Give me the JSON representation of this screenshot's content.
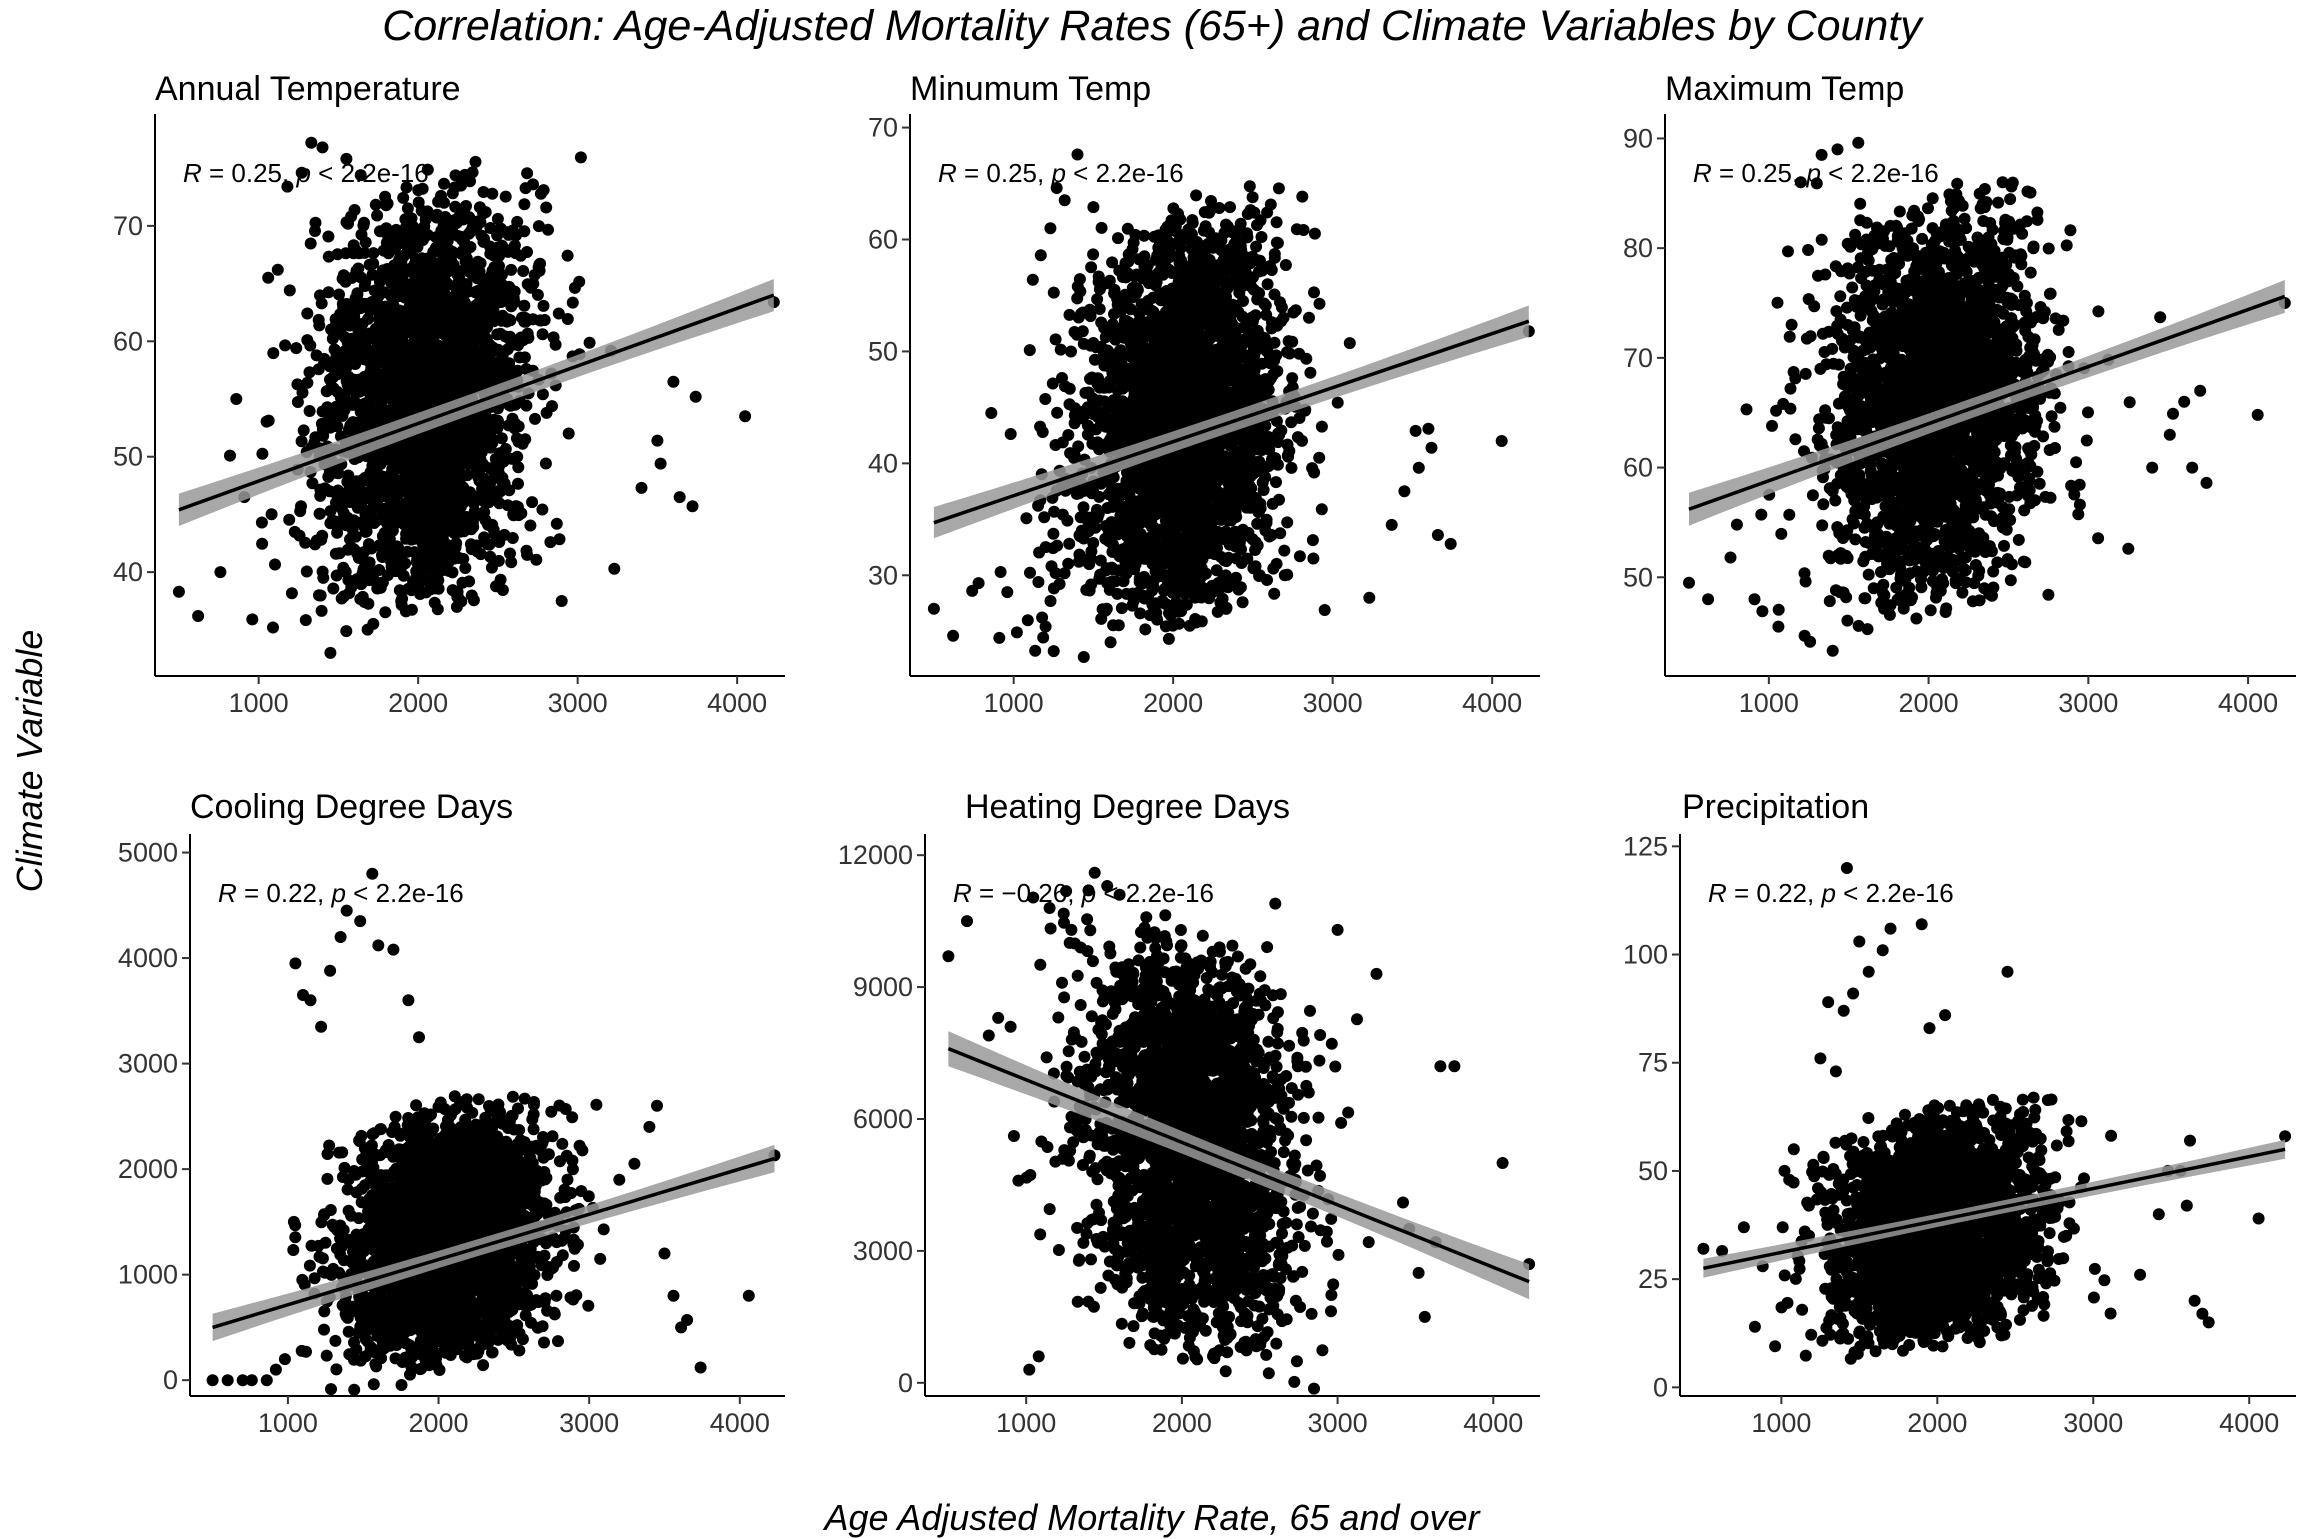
{
  "figure": {
    "title": "Correlation: Age-Adjusted Mortality Rates (65+) and Climate Variables by County",
    "xlabel": "Age Adjusted Mortality Rate, 65 and over",
    "ylabel": "Climate Variable"
  },
  "colors": {
    "points": "#000000",
    "line": "#000000",
    "band": "#999999"
  },
  "chart_data": [
    {
      "type": "scatter",
      "title": "Annual Temperature",
      "xlim": [
        350,
        4300
      ],
      "ylim": [
        31,
        79
      ],
      "xticks": [
        1000,
        2000,
        3000,
        4000
      ],
      "xtick_labels": [
        "1000",
        "2000",
        "3000",
        "4000"
      ],
      "yticks": [
        40,
        50,
        60,
        70
      ],
      "ytick_labels": [
        "40",
        "50",
        "60",
        "70"
      ],
      "annotation": {
        "r_label": "R",
        "r_text": " = 0.25, ",
        "p_label": "p",
        "p_text": " < 2.2e-16"
      },
      "trend": {
        "x": [
          500,
          4230
        ],
        "y": [
          45.4,
          64.0
        ],
        "band": [
          0.9,
          1.4
        ]
      },
      "cloud": {
        "x_center": 2050,
        "x_sd": 320,
        "y_low": 35,
        "y_high": 75
      },
      "points": [
        [
          500,
          38.3
        ],
        [
          620,
          36.2
        ],
        [
          760,
          40.0
        ],
        [
          820,
          50.1
        ],
        [
          860,
          55.0
        ],
        [
          910,
          46.5
        ],
        [
          960,
          35.9
        ],
        [
          1020,
          44.3
        ],
        [
          1060,
          65.5
        ],
        [
          1090,
          35.2
        ],
        [
          1120,
          66.2
        ],
        [
          1180,
          73.4
        ],
        [
          1270,
          74.6
        ],
        [
          1330,
          77.2
        ],
        [
          1400,
          76.8
        ],
        [
          1450,
          33.0
        ],
        [
          1550,
          75.8
        ],
        [
          1640,
          74.4
        ],
        [
          2560,
          63.5
        ],
        [
          2900,
          37.5
        ],
        [
          3230,
          40.3
        ],
        [
          3400,
          47.3
        ],
        [
          3500,
          51.4
        ],
        [
          3520,
          49.4
        ],
        [
          3600,
          56.5
        ],
        [
          3640,
          46.5
        ],
        [
          3720,
          45.7
        ],
        [
          3740,
          55.2
        ],
        [
          4050,
          53.5
        ],
        [
          4230,
          63.4
        ]
      ]
    },
    {
      "type": "scatter",
      "title": "Minumum Temp",
      "xlim": [
        350,
        4300
      ],
      "ylim": [
        21,
        70.5
      ],
      "xticks": [
        1000,
        2000,
        3000,
        4000
      ],
      "xtick_labels": [
        "1000",
        "2000",
        "3000",
        "4000"
      ],
      "yticks": [
        30,
        40,
        50,
        60,
        70
      ],
      "ytick_labels": [
        "30",
        "40",
        "50",
        "60",
        "70"
      ],
      "annotation": {
        "r_label": "R",
        "r_text": " = 0.25, ",
        "p_label": "p",
        "p_text": " < 2.2e-16"
      },
      "trend": {
        "x": [
          500,
          4230
        ],
        "y": [
          34.7,
          52.7
        ],
        "band": [
          0.9,
          1.4
        ]
      },
      "cloud": {
        "x_center": 2050,
        "x_sd": 320,
        "y_low": 24,
        "y_high": 64
      },
      "points": [
        [
          500,
          27.0
        ],
        [
          620,
          24.6
        ],
        [
          740,
          28.6
        ],
        [
          780,
          29.3
        ],
        [
          860,
          44.5
        ],
        [
          910,
          24.4
        ],
        [
          960,
          28.5
        ],
        [
          1020,
          24.9
        ],
        [
          1080,
          35.1
        ],
        [
          1120,
          56.4
        ],
        [
          1170,
          58.6
        ],
        [
          1230,
          61.0
        ],
        [
          1270,
          64.6
        ],
        [
          1320,
          63.5
        ],
        [
          1400,
          67.6
        ],
        [
          1440,
          22.7
        ],
        [
          1500,
          62.9
        ],
        [
          2700,
          30.0
        ],
        [
          2950,
          26.9
        ],
        [
          3230,
          28.0
        ],
        [
          3370,
          34.5
        ],
        [
          3450,
          37.5
        ],
        [
          3520,
          42.9
        ],
        [
          3540,
          39.6
        ],
        [
          3600,
          43.1
        ],
        [
          3620,
          41.4
        ],
        [
          3660,
          33.6
        ],
        [
          3740,
          32.8
        ],
        [
          4060,
          42.0
        ],
        [
          4230,
          51.8
        ]
      ]
    },
    {
      "type": "scatter",
      "title": "Maximum Temp",
      "xlim": [
        350,
        4300
      ],
      "ylim": [
        41,
        91.5
      ],
      "xticks": [
        1000,
        2000,
        3000,
        4000
      ],
      "xtick_labels": [
        "1000",
        "2000",
        "3000",
        "4000"
      ],
      "yticks": [
        50,
        60,
        70,
        80,
        90
      ],
      "ytick_labels": [
        "50",
        "60",
        "70",
        "80",
        "90"
      ],
      "annotation": {
        "r_label": "R",
        "r_text": " = 0.25, ",
        "p_label": "p",
        "p_text": " < 2.2e-16"
      },
      "trend": {
        "x": [
          500,
          4230
        ],
        "y": [
          56.2,
          75.6
        ],
        "band": [
          0.9,
          1.5
        ]
      },
      "cloud": {
        "x_center": 2050,
        "x_sd": 320,
        "y_low": 46,
        "y_high": 86
      },
      "points": [
        [
          500,
          49.5
        ],
        [
          620,
          48.0
        ],
        [
          760,
          51.8
        ],
        [
          800,
          54.8
        ],
        [
          860,
          65.3
        ],
        [
          910,
          48.0
        ],
        [
          960,
          46.9
        ],
        [
          1020,
          63.8
        ],
        [
          1060,
          45.5
        ],
        [
          1090,
          65.8
        ],
        [
          1120,
          79.7
        ],
        [
          1200,
          86.0
        ],
        [
          1300,
          85.9
        ],
        [
          1330,
          88.5
        ],
        [
          1400,
          43.3
        ],
        [
          1430,
          89.0
        ],
        [
          1560,
          89.6
        ],
        [
          2750,
          48.4
        ],
        [
          3250,
          52.6
        ],
        [
          3400,
          60.0
        ],
        [
          3450,
          73.7
        ],
        [
          3510,
          63.0
        ],
        [
          3530,
          64.9
        ],
        [
          3600,
          66.0
        ],
        [
          3650,
          60.0
        ],
        [
          3740,
          58.6
        ],
        [
          3700,
          67.0
        ],
        [
          4060,
          64.8
        ],
        [
          4230,
          75.0
        ]
      ]
    },
    {
      "type": "scatter",
      "title": "Cooling Degree Days",
      "xlim": [
        350,
        4300
      ],
      "ylim": [
        -150,
        5100
      ],
      "xticks": [
        1000,
        2000,
        3000,
        4000
      ],
      "xtick_labels": [
        "1000",
        "2000",
        "3000",
        "4000"
      ],
      "yticks": [
        0,
        1000,
        2000,
        3000,
        4000,
        5000
      ],
      "ytick_labels": [
        "0",
        "1000",
        "2000",
        "3000",
        "4000",
        "5000"
      ],
      "annotation": {
        "r_label": "R",
        "r_text": " = 0.22, ",
        "p_label": "p",
        "p_text": " < 2.2e-16"
      },
      "trend": {
        "x": [
          500,
          4230
        ],
        "y": [
          500,
          2100
        ],
        "band": [
          80,
          130
        ]
      },
      "cloud": {
        "x_center": 2080,
        "x_sd": 330,
        "y_low": 30,
        "y_high": 2700
      },
      "points": [
        [
          500,
          0
        ],
        [
          600,
          0
        ],
        [
          700,
          0
        ],
        [
          760,
          0
        ],
        [
          860,
          0
        ],
        [
          920,
          100
        ],
        [
          980,
          200
        ],
        [
          1040,
          1500
        ],
        [
          1050,
          3950
        ],
        [
          1100,
          3650
        ],
        [
          1150,
          3600
        ],
        [
          1220,
          3350
        ],
        [
          1280,
          3880
        ],
        [
          1350,
          4200
        ],
        [
          1390,
          4450
        ],
        [
          1480,
          4350
        ],
        [
          1560,
          4800
        ],
        [
          1600,
          4120
        ],
        [
          1700,
          4080
        ],
        [
          1800,
          3600
        ],
        [
          1870,
          3250
        ],
        [
          3200,
          1900
        ],
        [
          3300,
          2050
        ],
        [
          3400,
          2400
        ],
        [
          3450,
          2600
        ],
        [
          3500,
          1200
        ],
        [
          3560,
          800
        ],
        [
          3610,
          500
        ],
        [
          3650,
          570
        ],
        [
          3740,
          120
        ],
        [
          4060,
          800
        ],
        [
          4230,
          2130
        ]
      ]
    },
    {
      "type": "scatter",
      "title": "Heating Degree Days",
      "xlim": [
        350,
        4300
      ],
      "ylim": [
        -300,
        12300
      ],
      "xticks": [
        1000,
        2000,
        3000,
        4000
      ],
      "xtick_labels": [
        "1000",
        "2000",
        "3000",
        "4000"
      ],
      "yticks": [
        0,
        3000,
        6000,
        9000,
        12000
      ],
      "ytick_labels": [
        "0",
        "3000",
        "6000",
        "9000",
        "12000"
      ],
      "annotation": {
        "r_label": "R",
        "r_text": " = −0.26, ",
        "p_label": "p",
        "p_text": " < 2.2e-16"
      },
      "trend": {
        "x": [
          500,
          4230
        ],
        "y": [
          7600,
          2300
        ],
        "band": [
          250,
          400
        ]
      },
      "cloud": {
        "x_center": 2050,
        "x_sd": 330,
        "y_low": 300,
        "y_high": 10500
      },
      "points": [
        [
          500,
          9700
        ],
        [
          620,
          10500
        ],
        [
          760,
          7900
        ],
        [
          820,
          8300
        ],
        [
          900,
          8100
        ],
        [
          950,
          4600
        ],
        [
          1020,
          300
        ],
        [
          1080,
          600
        ],
        [
          1150,
          10800
        ],
        [
          1230,
          9100
        ],
        [
          1290,
          10300
        ],
        [
          1350,
          9900
        ],
        [
          1400,
          11200
        ],
        [
          1440,
          11600
        ],
        [
          1520,
          11300
        ],
        [
          1600,
          11100
        ],
        [
          2600,
          10900
        ],
        [
          3000,
          10300
        ],
        [
          3200,
          3200
        ],
        [
          3250,
          9300
        ],
        [
          3420,
          4100
        ],
        [
          3460,
          3500
        ],
        [
          3520,
          2500
        ],
        [
          3560,
          1500
        ],
        [
          3630,
          3200
        ],
        [
          3660,
          7200
        ],
        [
          3750,
          7200
        ],
        [
          4060,
          5000
        ],
        [
          4230,
          2700
        ]
      ]
    },
    {
      "type": "scatter",
      "title": "Precipitation",
      "xlim": [
        350,
        4300
      ],
      "ylim": [
        -2,
        126
      ],
      "xticks": [
        1000,
        2000,
        3000,
        4000
      ],
      "xtick_labels": [
        "1000",
        "2000",
        "3000",
        "4000"
      ],
      "yticks": [
        0,
        25,
        50,
        75,
        100,
        125
      ],
      "ytick_labels": [
        "0",
        "25",
        "50",
        "75",
        "100",
        "125"
      ],
      "annotation": {
        "r_label": "R",
        "r_text": " = 0.22, ",
        "p_label": "p",
        "p_text": " < 2.2e-16"
      },
      "trend": {
        "x": [
          500,
          4230
        ],
        "y": [
          27.5,
          55.0
        ],
        "band": [
          1.5,
          2.2
        ]
      },
      "cloud": {
        "x_center": 2000,
        "x_sd": 330,
        "y_low": 8,
        "y_high": 66
      },
      "points": [
        [
          500,
          32.0
        ],
        [
          620,
          31.5
        ],
        [
          760,
          37.0
        ],
        [
          830,
          14.0
        ],
        [
          880,
          28.0
        ],
        [
          960,
          9.5
        ],
        [
          1020,
          50.0
        ],
        [
          1080,
          55.0
        ],
        [
          1150,
          36.0
        ],
        [
          1250,
          76.0
        ],
        [
          1300,
          89.0
        ],
        [
          1350,
          73.0
        ],
        [
          1400,
          87.0
        ],
        [
          1420,
          120.0
        ],
        [
          1460,
          91.0
        ],
        [
          1500,
          103.0
        ],
        [
          1560,
          96.0
        ],
        [
          1650,
          101.0
        ],
        [
          1700,
          106.0
        ],
        [
          1900,
          107.0
        ],
        [
          1950,
          83.0
        ],
        [
          2050,
          86.0
        ],
        [
          2450,
          96.0
        ],
        [
          3300,
          26.0
        ],
        [
          3420,
          40.0
        ],
        [
          3480,
          50.0
        ],
        [
          3560,
          50.0
        ],
        [
          3600,
          42.0
        ],
        [
          3620,
          57.0
        ],
        [
          3650,
          20.0
        ],
        [
          3700,
          17.0
        ],
        [
          3740,
          15.0
        ],
        [
          4060,
          39.0
        ],
        [
          4230,
          58.0
        ]
      ]
    }
  ]
}
